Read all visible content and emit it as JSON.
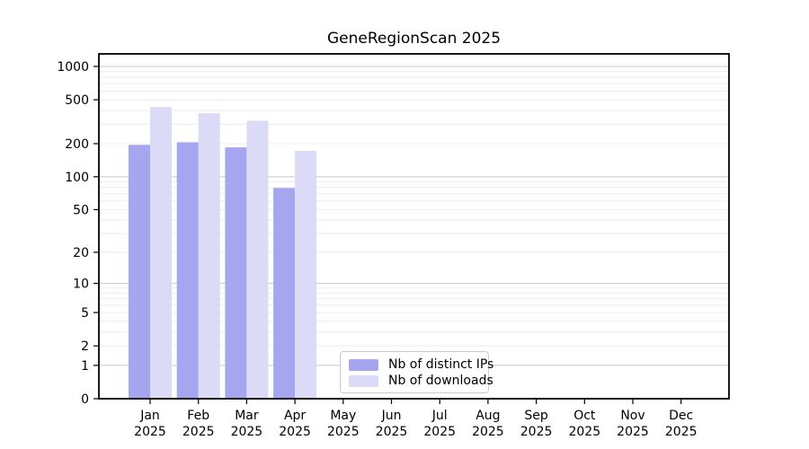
{
  "chart_data": {
    "type": "bar",
    "title": "GeneRegionScan 2025",
    "categories": [
      "Jan",
      "Feb",
      "Mar",
      "Apr",
      "May",
      "Jun",
      "Jul",
      "Aug",
      "Sep",
      "Oct",
      "Nov",
      "Dec"
    ],
    "x_year": "2025",
    "series": [
      {
        "name": "Nb of distinct IPs",
        "color": "#a5a5f0",
        "values": [
          195,
          206,
          185,
          79,
          0,
          0,
          0,
          0,
          0,
          0,
          0,
          0
        ]
      },
      {
        "name": "Nb of downloads",
        "color": "#dbdbf8",
        "values": [
          430,
          377,
          323,
          172,
          0,
          0,
          0,
          0,
          0,
          0,
          0,
          0
        ]
      }
    ],
    "y_scale": "log10(1+x)",
    "y_ticks": [
      0,
      1,
      2,
      5,
      10,
      20,
      50,
      100,
      200,
      500,
      1000
    ],
    "y_major_gridlines": [
      1,
      10,
      100,
      1000
    ],
    "y_max": 1000,
    "ylim": [
      0,
      1000
    ],
    "xlabel": "",
    "ylabel": "",
    "grid": "horizontal",
    "legend_position": "bottom-center-inside",
    "colors": {
      "axis": "#000000",
      "major_grid": "#c8c8c8",
      "minor_grid": "#ededed",
      "background": "#ffffff"
    }
  }
}
